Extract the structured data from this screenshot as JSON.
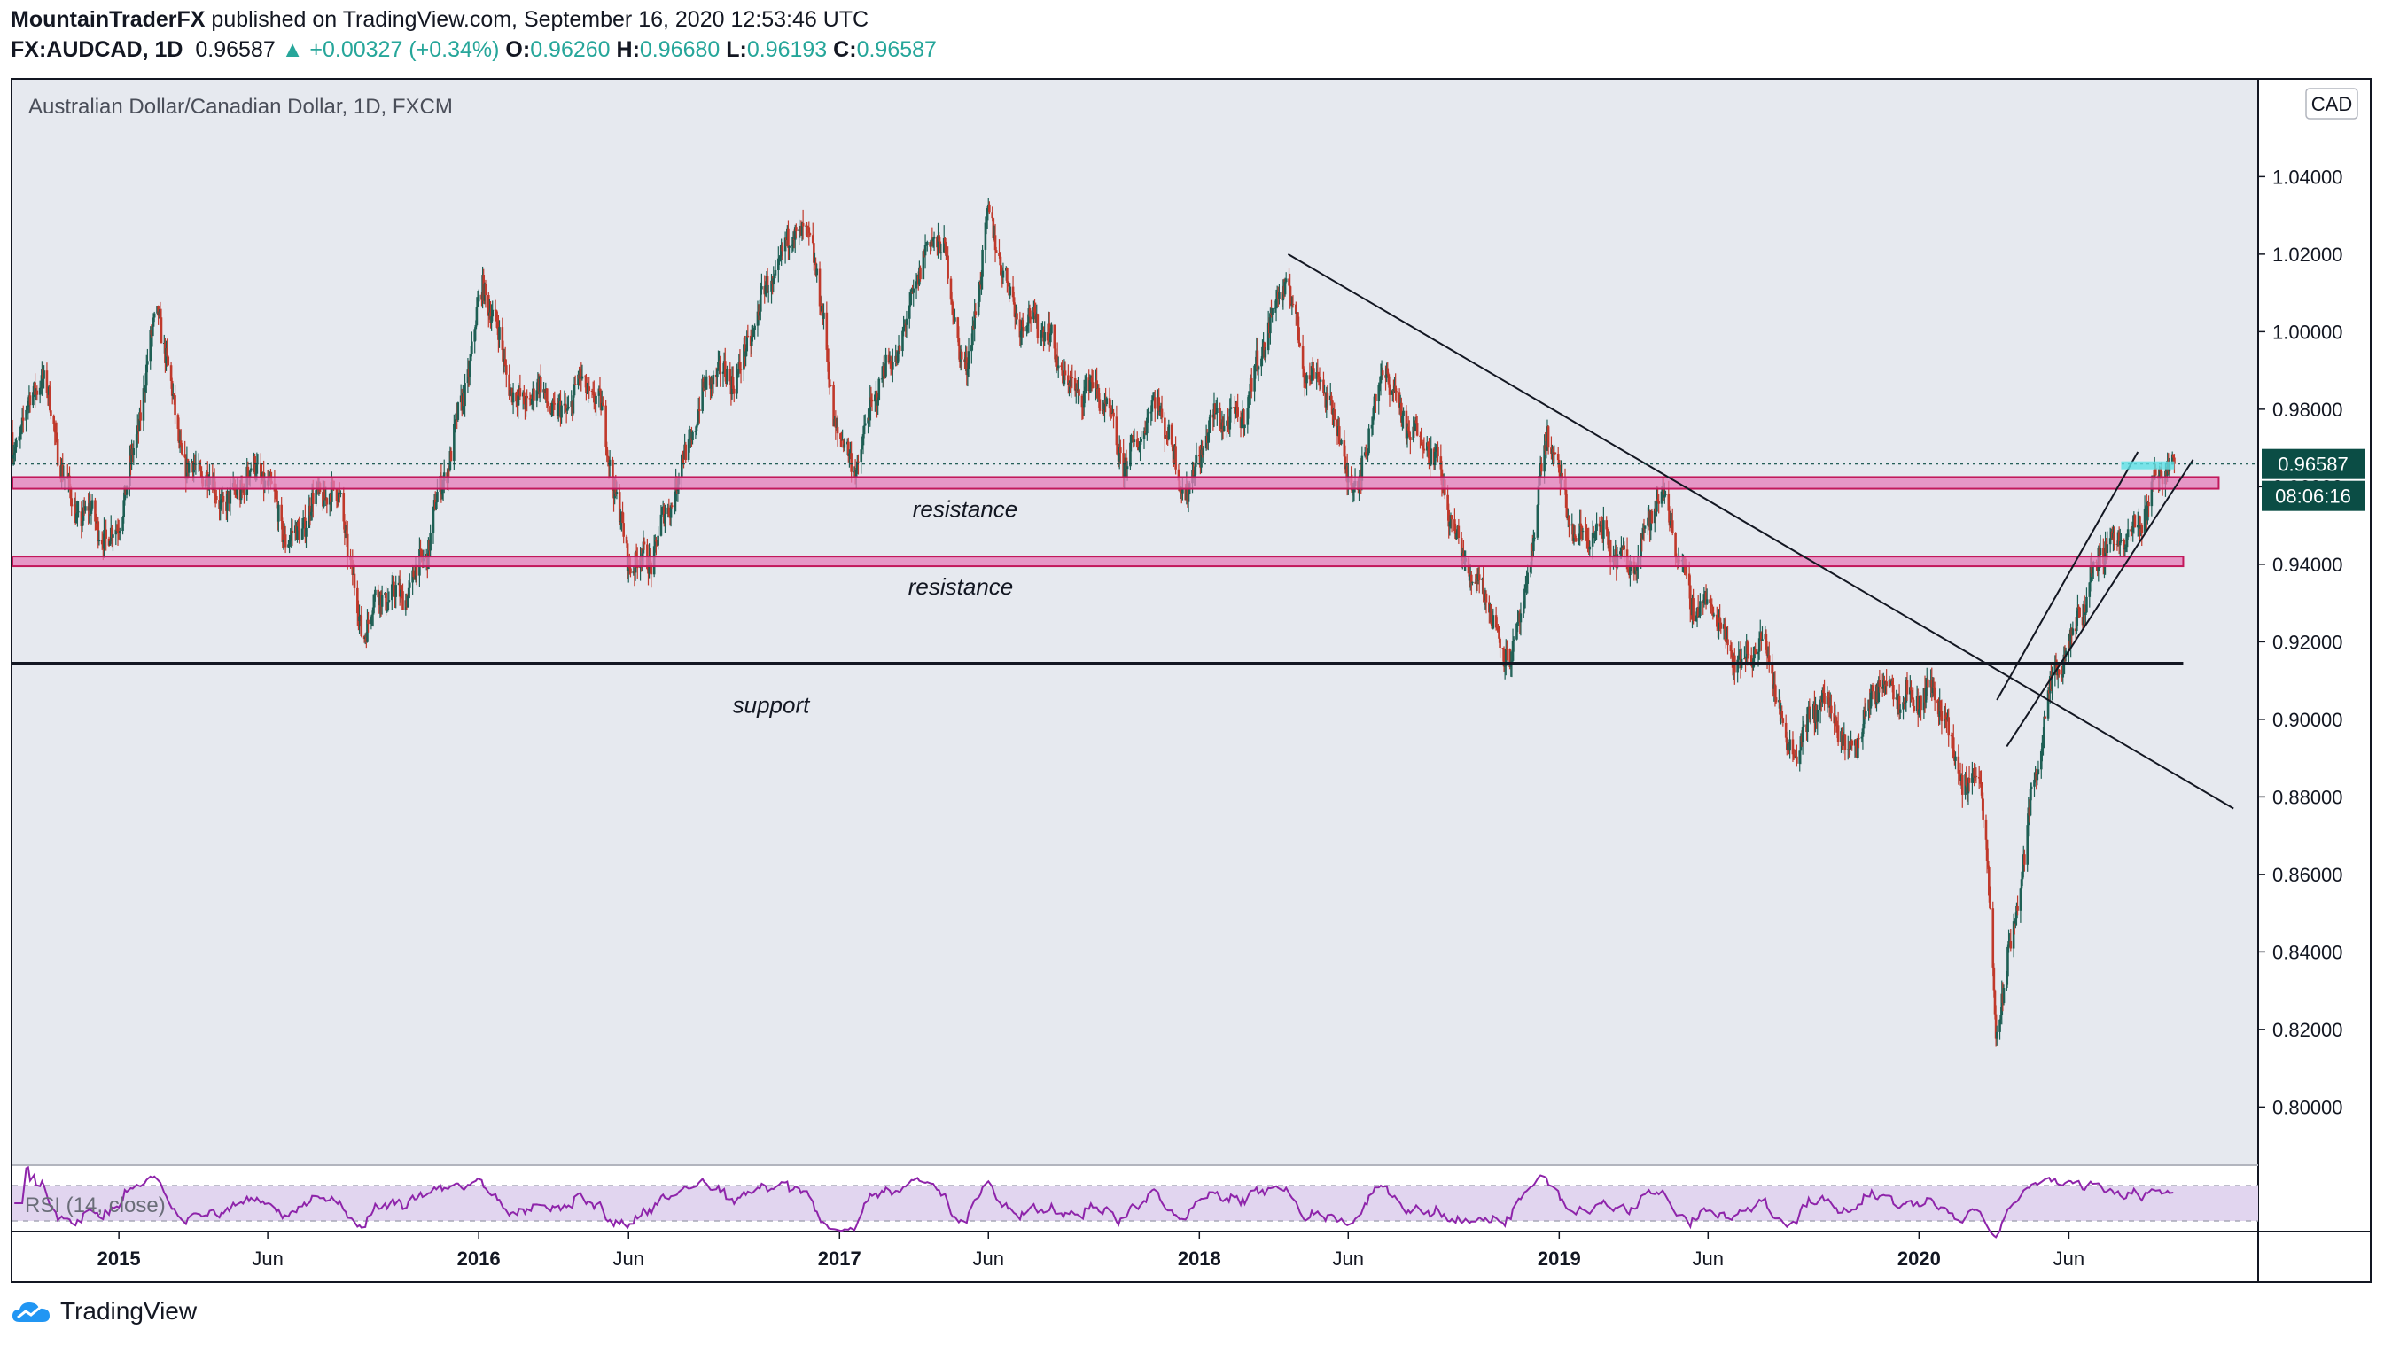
{
  "header": {
    "author": "MountainTraderFX",
    "published_text": " published on TradingView.com, September 16, 2020 12:53:46 UTC"
  },
  "quote": {
    "symbol": "FX:AUDCAD, 1D",
    "last": "0.96587",
    "change": "+0.00327 (+0.34%)",
    "o_label": "O:",
    "o": "0.96260",
    "h_label": "H:",
    "h": "0.96680",
    "l_label": "L:",
    "l": "0.96193",
    "c_label": "C:",
    "c": "0.96587",
    "arrow": "▲"
  },
  "chart_title": "Australian Dollar/Canadian Dollar, 1D, FXCM",
  "currency_badge": "CAD",
  "price_label": "0.96587",
  "countdown_label": "08:06:16",
  "rsi_label": "RSI (14, close)",
  "brand": "TradingView",
  "colors": {
    "up": "#26a69a",
    "down": "#ef5350",
    "candle_up": "#1e5f54",
    "candle_down": "#c0392b",
    "zone_fill": "#e57bb8",
    "zone_border": "#c2185b",
    "rsi": "#8e24aa",
    "rsi_band": "#e1d5ef",
    "price_tag": "#0b4d45",
    "plot_bg": "#e6e9ef"
  },
  "chart_data": {
    "type": "candlestick",
    "title": "Australian Dollar/Canadian Dollar, 1D, FXCM",
    "y_ticks": [
      "1.04000",
      "1.02000",
      "1.00000",
      "0.98000",
      "0.96000",
      "0.94000",
      "0.92000",
      "0.90000",
      "0.88000",
      "0.86000",
      "0.84000",
      "0.82000",
      "0.80000"
    ],
    "y_tick_values": [
      1.04,
      1.02,
      1.0,
      0.98,
      0.96,
      0.94,
      0.92,
      0.9,
      0.88,
      0.86,
      0.84,
      0.82,
      0.8
    ],
    "ylim": [
      0.785,
      1.065
    ],
    "xlim": [
      "2014-09-15",
      "2020-12-10"
    ],
    "x_ticks": [
      {
        "label": "2015",
        "date": "2015-01-01"
      },
      {
        "label": "Jun",
        "date": "2015-06-01"
      },
      {
        "label": "2016",
        "date": "2016-01-01"
      },
      {
        "label": "Jun",
        "date": "2016-06-01"
      },
      {
        "label": "2017",
        "date": "2017-01-01"
      },
      {
        "label": "Jun",
        "date": "2017-06-01"
      },
      {
        "label": "2018",
        "date": "2018-01-01"
      },
      {
        "label": "Jun",
        "date": "2018-06-01"
      },
      {
        "label": "2019",
        "date": "2019-01-01"
      },
      {
        "label": "Jun",
        "date": "2019-06-01"
      },
      {
        "label": "2020",
        "date": "2020-01-01"
      },
      {
        "label": "Jun",
        "date": "2020-06-01"
      }
    ],
    "price_path": [
      [
        "2014-09-15",
        0.974
      ],
      [
        "2014-10-15",
        0.985
      ],
      [
        "2014-11-20",
        0.955
      ],
      [
        "2014-12-20",
        0.943
      ],
      [
        "2015-01-20",
        0.975
      ],
      [
        "2015-02-10",
        1.003
      ],
      [
        "2015-03-10",
        0.968
      ],
      [
        "2015-04-10",
        0.955
      ],
      [
        "2015-05-10",
        0.965
      ],
      [
        "2015-06-20",
        0.95
      ],
      [
        "2015-07-20",
        0.953
      ],
      [
        "2015-08-15",
        0.96
      ],
      [
        "2015-09-05",
        0.921
      ],
      [
        "2015-10-10",
        0.935
      ],
      [
        "2015-11-10",
        0.94
      ],
      [
        "2015-12-10",
        0.98
      ],
      [
        "2016-01-05",
        1.008
      ],
      [
        "2016-02-10",
        0.985
      ],
      [
        "2016-03-20",
        0.978
      ],
      [
        "2016-04-10",
        0.99
      ],
      [
        "2016-05-05",
        0.975
      ],
      [
        "2016-06-01",
        0.945
      ],
      [
        "2016-06-25",
        0.937
      ],
      [
        "2016-07-25",
        0.97
      ],
      [
        "2016-08-25",
        0.985
      ],
      [
        "2016-09-25",
        0.995
      ],
      [
        "2016-10-25",
        1.01
      ],
      [
        "2016-11-15",
        1.032
      ],
      [
        "2016-12-05",
        1.02
      ],
      [
        "2016-12-25",
        0.978
      ],
      [
        "2017-01-20",
        0.968
      ],
      [
        "2017-02-20",
        0.99
      ],
      [
        "2017-03-20",
        1.015
      ],
      [
        "2017-04-15",
        1.022
      ],
      [
        "2017-05-10",
        0.992
      ],
      [
        "2017-06-01",
        1.025
      ],
      [
        "2017-07-01",
        1.008
      ],
      [
        "2017-08-01",
        0.995
      ],
      [
        "2017-09-10",
        0.985
      ],
      [
        "2017-10-15",
        0.97
      ],
      [
        "2017-11-20",
        0.978
      ],
      [
        "2017-12-20",
        0.962
      ],
      [
        "2018-01-20",
        0.975
      ],
      [
        "2018-02-20",
        0.985
      ],
      [
        "2018-03-10",
        0.995
      ],
      [
        "2018-04-01",
        1.017
      ],
      [
        "2018-04-20",
        0.99
      ],
      [
        "2018-05-15",
        0.978
      ],
      [
        "2018-06-10",
        0.962
      ],
      [
        "2018-07-10",
        0.988
      ],
      [
        "2018-08-10",
        0.975
      ],
      [
        "2018-09-05",
        0.958
      ],
      [
        "2018-10-01",
        0.942
      ],
      [
        "2018-11-05",
        0.915
      ],
      [
        "2018-11-25",
        0.93
      ],
      [
        "2018-12-20",
        0.97
      ],
      [
        "2019-01-20",
        0.95
      ],
      [
        "2019-02-20",
        0.942
      ],
      [
        "2019-03-20",
        0.945
      ],
      [
        "2019-04-20",
        0.955
      ],
      [
        "2019-05-20",
        0.93
      ],
      [
        "2019-06-20",
        0.92
      ],
      [
        "2019-07-25",
        0.918
      ],
      [
        "2019-08-20",
        0.895
      ],
      [
        "2019-09-20",
        0.902
      ],
      [
        "2019-10-20",
        0.895
      ],
      [
        "2019-11-20",
        0.905
      ],
      [
        "2019-12-20",
        0.91
      ],
      [
        "2020-01-20",
        0.902
      ],
      [
        "2020-02-20",
        0.885
      ],
      [
        "2020-03-01",
        0.89
      ],
      [
        "2020-03-10",
        0.86
      ],
      [
        "2020-03-19",
        0.815
      ],
      [
        "2020-04-01",
        0.84
      ],
      [
        "2020-04-20",
        0.875
      ],
      [
        "2020-05-15",
        0.905
      ],
      [
        "2020-06-10",
        0.93
      ],
      [
        "2020-07-05",
        0.94
      ],
      [
        "2020-07-30",
        0.95
      ],
      [
        "2020-08-20",
        0.955
      ],
      [
        "2020-09-16",
        0.96587
      ]
    ],
    "resistance_zones": [
      {
        "label": "resistance",
        "low": 0.9595,
        "high": 0.9625
      },
      {
        "label": "resistance",
        "low": 0.9395,
        "high": 0.942
      }
    ],
    "support_line": {
      "label": "support",
      "value": 0.9145
    },
    "trendline": {
      "from": [
        "2018-04-01",
        1.02
      ],
      "to": [
        "2020-11-15",
        0.877
      ]
    },
    "channel_lines": [
      {
        "from": [
          "2020-03-20",
          0.905
        ],
        "to": [
          "2020-08-10",
          0.969
        ]
      },
      {
        "from": [
          "2020-03-30",
          0.893
        ],
        "to": [
          "2020-10-05",
          0.967
        ]
      }
    ],
    "last_price": 0.96587
  }
}
